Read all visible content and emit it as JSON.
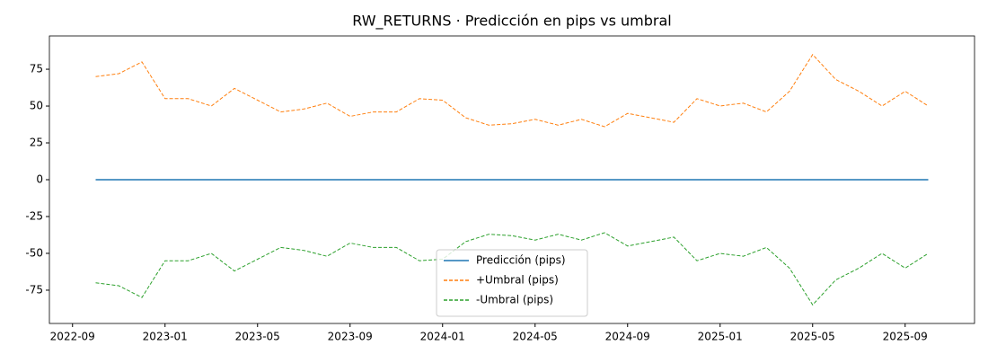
{
  "chart_data": {
    "type": "line",
    "title": "RW_RETURNS · Predicción en pips vs umbral",
    "x": [
      "2022-10",
      "2022-11",
      "2022-12",
      "2023-01",
      "2023-02",
      "2023-03",
      "2023-04",
      "2023-05",
      "2023-06",
      "2023-07",
      "2023-08",
      "2023-09",
      "2023-10",
      "2023-11",
      "2023-12",
      "2024-01",
      "2024-02",
      "2024-03",
      "2024-04",
      "2024-05",
      "2024-06",
      "2024-07",
      "2024-08",
      "2024-09",
      "2024-10",
      "2024-11",
      "2024-12",
      "2025-01",
      "2025-02",
      "2025-03",
      "2025-04",
      "2025-05",
      "2025-06",
      "2025-07",
      "2025-08",
      "2025-09",
      "2025-10"
    ],
    "series": [
      {
        "name": "Predicción (pips)",
        "color": "#1f77b4",
        "style": "solid",
        "values": [
          0,
          0,
          0,
          0,
          0,
          0,
          0,
          0,
          0,
          0,
          0,
          0,
          0,
          0,
          0,
          0,
          0,
          0,
          0,
          0,
          0,
          0,
          0,
          0,
          0,
          0,
          0,
          0,
          0,
          0,
          0,
          0,
          0,
          0,
          0,
          0,
          0
        ]
      },
      {
        "name": "+Umbral (pips)",
        "color": "#ff7f0e",
        "style": "dashed",
        "values": [
          70,
          72,
          80,
          55,
          55,
          50,
          62,
          54,
          46,
          48,
          52,
          43,
          46,
          46,
          55,
          54,
          42,
          37,
          38,
          41,
          37,
          41,
          36,
          45,
          42,
          39,
          55,
          50,
          52,
          46,
          60,
          85,
          68,
          60,
          50,
          60,
          50
        ]
      },
      {
        "name": "-Umbral (pips)",
        "color": "#2ca02c",
        "style": "dashed",
        "values": [
          -70,
          -72,
          -80,
          -55,
          -55,
          -50,
          -62,
          -54,
          -46,
          -48,
          -52,
          -43,
          -46,
          -46,
          -55,
          -54,
          -42,
          -37,
          -38,
          -41,
          -37,
          -41,
          -36,
          -45,
          -42,
          -39,
          -55,
          -50,
          -52,
          -46,
          -60,
          -85,
          -68,
          -60,
          -50,
          -60,
          -50
        ]
      }
    ],
    "xlim": [
      "2022-08",
      "2025-12"
    ],
    "xticks": [
      "2022-09",
      "2023-01",
      "2023-05",
      "2023-09",
      "2024-01",
      "2024-05",
      "2024-09",
      "2025-01",
      "2025-05",
      "2025-09"
    ],
    "ylim": [
      -97.6,
      97.6
    ],
    "yticks": [
      -75,
      -50,
      -25,
      0,
      25,
      50,
      75
    ],
    "legend": "lower center"
  }
}
